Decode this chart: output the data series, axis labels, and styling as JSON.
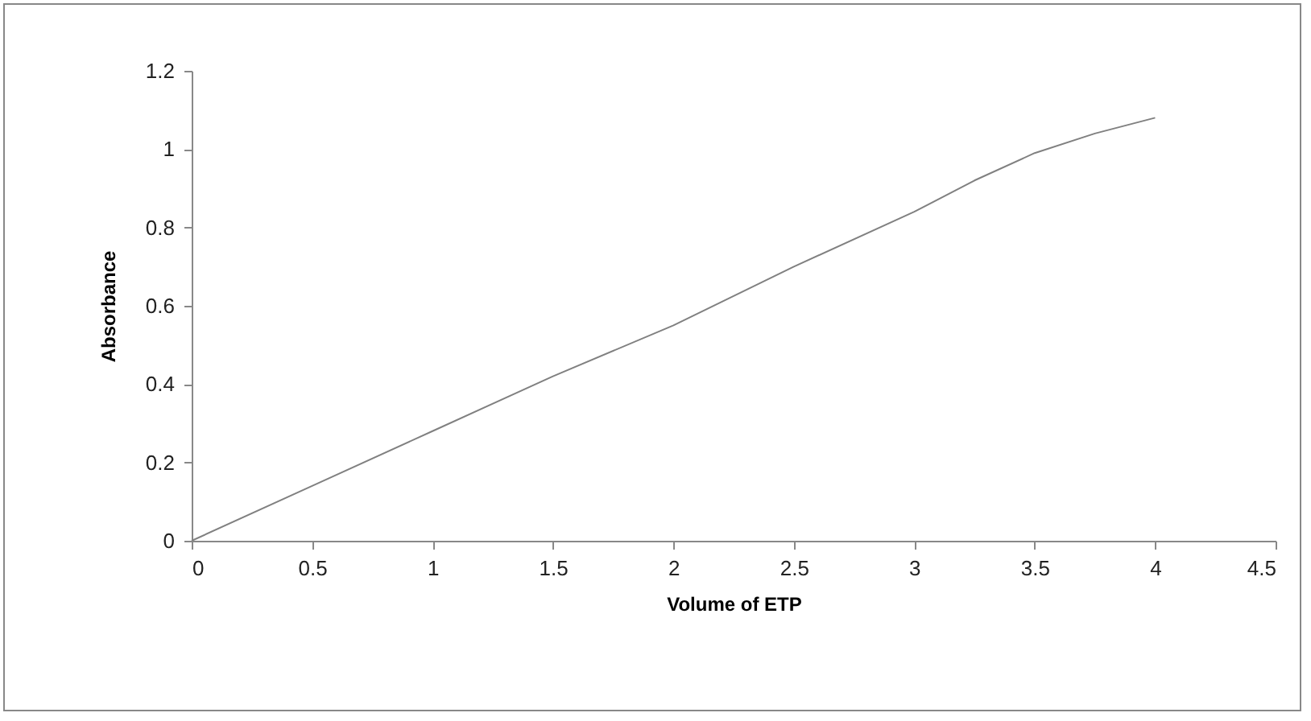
{
  "chart_data": {
    "type": "line",
    "xlabel": "Volume of ETP",
    "ylabel": "Absorbance",
    "x": [
      0,
      0.5,
      1,
      1.5,
      2,
      2.5,
      3,
      3.25,
      3.5,
      3.75,
      4
    ],
    "series": [
      {
        "color": "#808080",
        "values": [
          0,
          0.14,
          0.28,
          0.42,
          0.55,
          0.7,
          0.84,
          0.92,
          0.99,
          1.04,
          1.08
        ]
      }
    ],
    "xlim": [
      0,
      4.5
    ],
    "xticks": [
      0,
      0.5,
      1,
      1.5,
      2,
      2.5,
      3,
      3.5,
      4,
      4.5
    ],
    "ylim": [
      0,
      1.2
    ],
    "yticks": [
      0,
      0.2,
      0.4,
      0.6,
      0.8,
      1,
      1.2
    ],
    "grid": false,
    "marker": "none",
    "line_style": "solid"
  }
}
